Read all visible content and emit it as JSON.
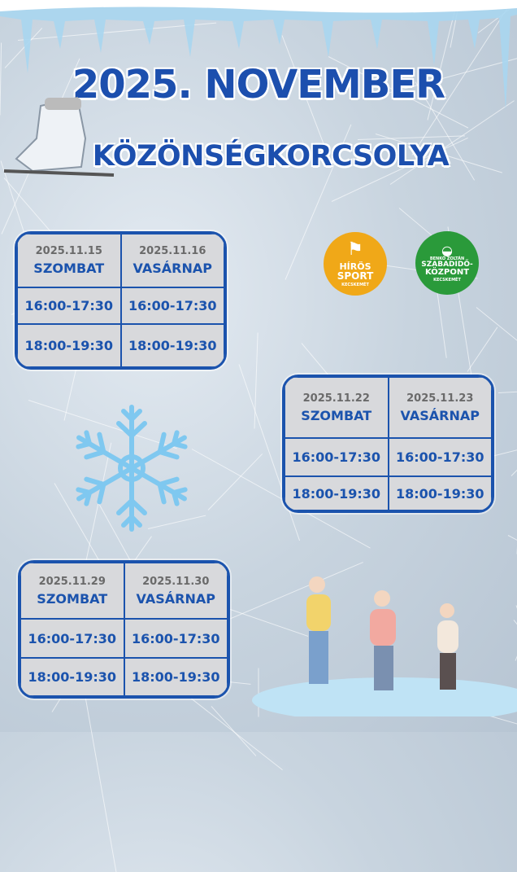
{
  "title": "2025. NOVEMBER",
  "subtitle": "KÖZÖNSÉGKORCSOLYA",
  "logos": [
    {
      "lines": [
        "HÍRÖS",
        "SPORT"
      ],
      "sub": "KECSKEMÉT",
      "color": "#f0a818"
    },
    {
      "top": "BENKÓ ZOLTÁN",
      "lines": [
        "SZABADIDŐ-",
        "KÖZPONT"
      ],
      "sub": "KECSKEMÉT",
      "color": "#2a9a3a"
    }
  ],
  "schedules": [
    {
      "days": [
        {
          "date": "2025.11.15",
          "day": "SZOMBAT"
        },
        {
          "date": "2025.11.16",
          "day": "VASÁRNAP"
        }
      ],
      "slots": [
        "16:00-17:30",
        "18:00-19:30"
      ]
    },
    {
      "days": [
        {
          "date": "2025.11.22",
          "day": "SZOMBAT"
        },
        {
          "date": "2025.11.23",
          "day": "VASÁRNAP"
        }
      ],
      "slots": [
        "16:00-17:30",
        "18:00-19:30"
      ]
    },
    {
      "days": [
        {
          "date": "2025.11.29",
          "day": "SZOMBAT"
        },
        {
          "date": "2025.11.30",
          "day": "VASÁRNAP"
        }
      ],
      "slots": [
        "16:00-17:30",
        "18:00-19:30"
      ]
    }
  ],
  "colors": {
    "accent": "#1b53ad",
    "cell": "#d8d9dc",
    "date": "#6a6a6a"
  },
  "icons": [
    "icicles",
    "ice-skate",
    "snowflake",
    "skaters"
  ]
}
